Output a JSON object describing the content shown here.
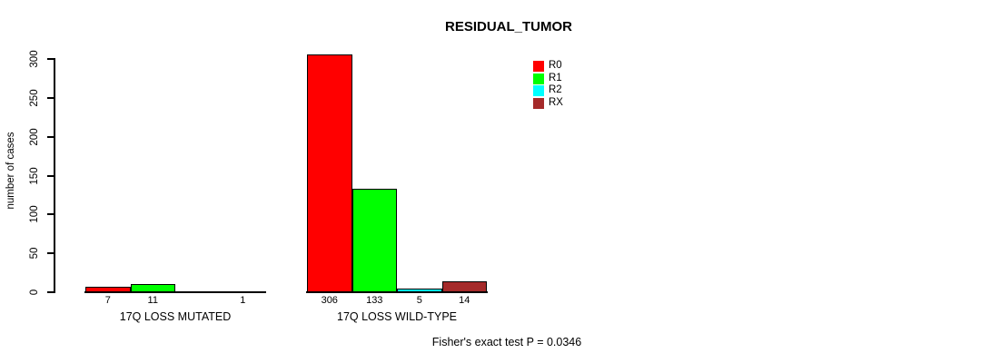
{
  "chart_data": {
    "type": "bar",
    "title": "RESIDUAL_TUMOR",
    "ylabel": "number of cases",
    "ylim": [
      0,
      300
    ],
    "yticks": [
      0,
      50,
      100,
      150,
      200,
      250,
      300
    ],
    "grid": false,
    "legend_position": "top-right",
    "legend": [
      {
        "name": "R0",
        "color": "#FF0000"
      },
      {
        "name": "R1",
        "color": "#00FF00"
      },
      {
        "name": "R2",
        "color": "#00FFFF"
      },
      {
        "name": "RX",
        "color": "#A52A2A"
      }
    ],
    "categories": [
      "17Q LOSS MUTATED",
      "17Q LOSS WILD-TYPE"
    ],
    "series": [
      {
        "name": "R0",
        "values": [
          7,
          306
        ]
      },
      {
        "name": "R1",
        "values": [
          11,
          133
        ]
      },
      {
        "name": "R2",
        "values": [
          0,
          5
        ]
      },
      {
        "name": "RX",
        "values": [
          1,
          14
        ]
      }
    ],
    "groups": [
      {
        "label": "17Q LOSS MUTATED",
        "values": [
          7,
          11,
          0,
          1
        ],
        "value_labels": [
          "7",
          "11",
          "",
          "1"
        ]
      },
      {
        "label": "17Q LOSS WILD-TYPE",
        "values": [
          306,
          133,
          5,
          14
        ],
        "value_labels": [
          "306",
          "133",
          "5",
          "14"
        ]
      }
    ],
    "annotation": "Fisher's exact test P = 0.0346"
  }
}
